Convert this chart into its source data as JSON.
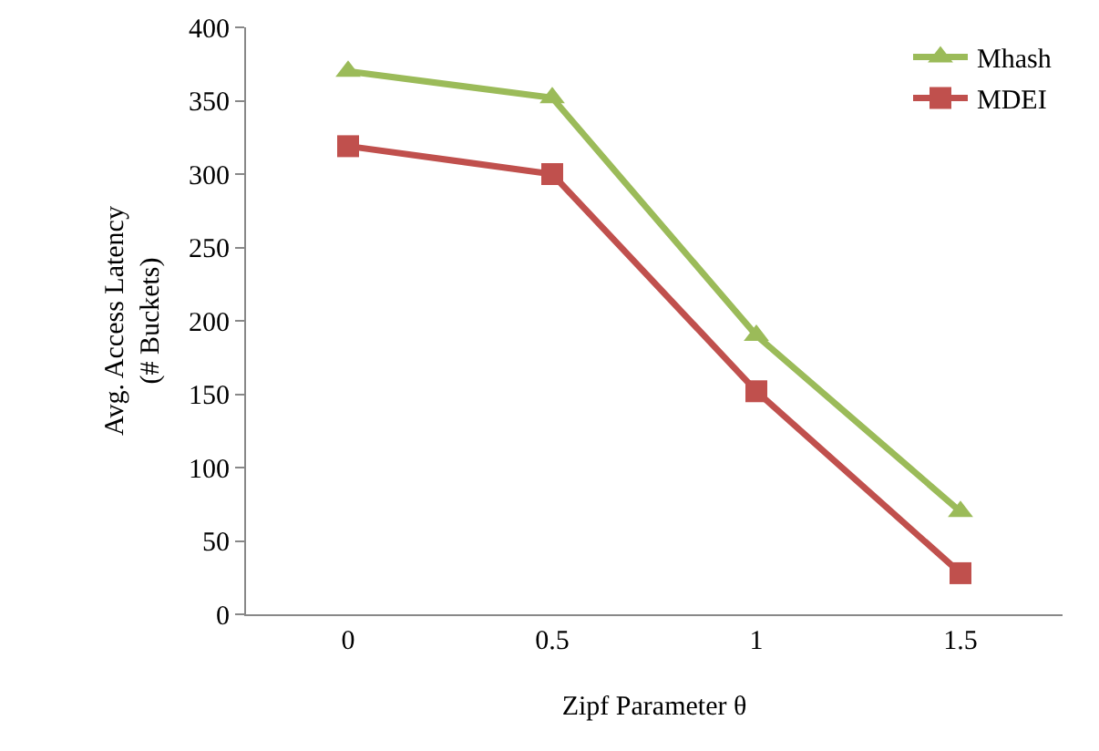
{
  "chart_data": {
    "type": "line",
    "xlabel": "Zipf Parameter θ",
    "ylabel": "Avg. Access Latency\n(# Buckets)",
    "categories": [
      "0",
      "0.5",
      "1",
      "1.5"
    ],
    "series": [
      {
        "name": "Mhash",
        "color": "#9bbb59",
        "marker": "triangle",
        "values": [
          370,
          352,
          190,
          70
        ]
      },
      {
        "name": "MDEI",
        "color": "#c0504d",
        "marker": "square",
        "values": [
          319,
          300,
          152,
          28
        ]
      }
    ],
    "ylim": [
      0,
      400
    ],
    "yticks": [
      0,
      50,
      100,
      150,
      200,
      250,
      300,
      350,
      400
    ],
    "grid": false,
    "legend": "top right",
    "line_style": "solid"
  }
}
